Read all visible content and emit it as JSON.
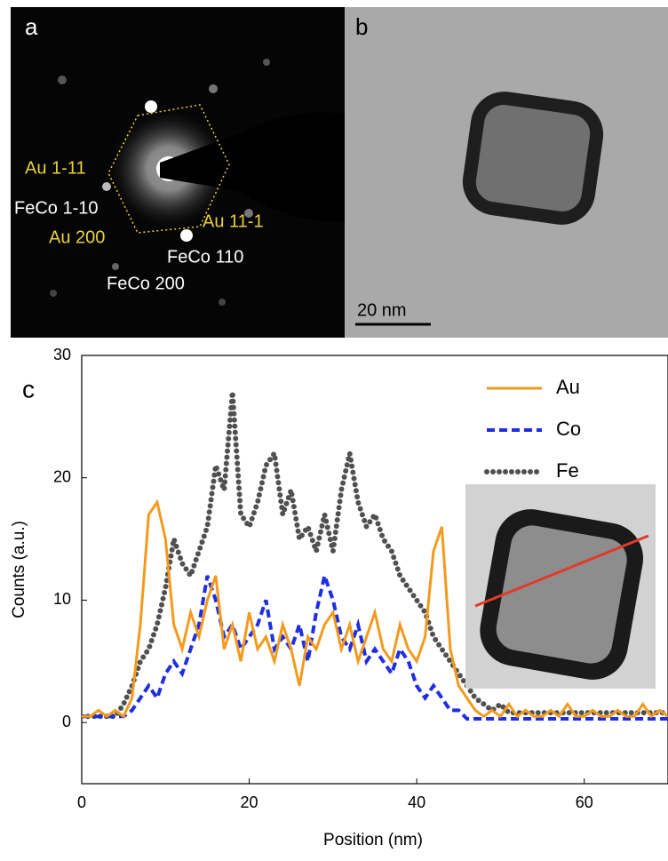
{
  "panels": {
    "a": {
      "label": "a",
      "annotations": [
        {
          "text": "Au 1-11",
          "color": "#e8d23a"
        },
        {
          "text": "FeCo 1-10",
          "color": "#ffffff"
        },
        {
          "text": "Au 200",
          "color": "#e8d23a"
        },
        {
          "text": "Au 11-1",
          "color": "#e8d23a"
        },
        {
          "text": "FeCo 110",
          "color": "#ffffff"
        },
        {
          "text": "FeCo 200",
          "color": "#ffffff"
        }
      ]
    },
    "b": {
      "label": "b",
      "scale_bar": "20 nm"
    }
  },
  "chart_data": {
    "type": "line",
    "panel_label": "c",
    "x_label": "Position (nm)",
    "y_label": "Counts (a.u.)",
    "xlim": [
      0,
      70
    ],
    "xticks": [
      0,
      20,
      40,
      60
    ],
    "ylim": [
      -5,
      30
    ],
    "yticks": [
      0,
      10,
      20,
      30
    ],
    "legend": "upper right",
    "x": [
      0,
      1,
      2,
      3,
      4,
      5,
      6,
      7,
      8,
      9,
      10,
      11,
      12,
      13,
      14,
      15,
      16,
      17,
      18,
      19,
      20,
      21,
      22,
      23,
      24,
      25,
      26,
      27,
      28,
      29,
      30,
      31,
      32,
      33,
      34,
      35,
      36,
      37,
      38,
      39,
      40,
      41,
      42,
      43,
      44,
      45,
      46,
      47,
      48,
      49,
      50,
      51,
      52,
      53,
      54,
      55,
      56,
      57,
      58,
      59,
      60,
      61,
      62,
      63,
      64,
      65,
      66,
      67,
      68,
      69,
      70
    ],
    "series": [
      {
        "name": "Au",
        "color": "#f39a1e",
        "style": "solid",
        "values": [
          0.5,
          0.5,
          1,
          0.5,
          1,
          0.5,
          2,
          8,
          17,
          18,
          15,
          8,
          6,
          9,
          7,
          10,
          12,
          6,
          8,
          5,
          9,
          6,
          7,
          5,
          8,
          6,
          3,
          7,
          6,
          8,
          9,
          6,
          8,
          5,
          7,
          9,
          6,
          5,
          8,
          6,
          5,
          7,
          14,
          16,
          6,
          3,
          2,
          1,
          0.5,
          1,
          0.5,
          1.5,
          0.5,
          1,
          0.5,
          0.5,
          1,
          0.5,
          1.5,
          0.5,
          0.5,
          1,
          0.5,
          0.5,
          1,
          0.5,
          0.5,
          1.5,
          0.5,
          1,
          0.5
        ]
      },
      {
        "name": "Co",
        "color": "#1f2ee0",
        "style": "dashed",
        "values": [
          0.5,
          0.5,
          0.5,
          0.5,
          0.5,
          0.5,
          1,
          2,
          3,
          2,
          4,
          5,
          4,
          6,
          8,
          12,
          10,
          7,
          8,
          6,
          7,
          8,
          10,
          6,
          7,
          6,
          8,
          5,
          9,
          12,
          10,
          7,
          6,
          8,
          5,
          6,
          5,
          4,
          6,
          5,
          3,
          2,
          3,
          2,
          1,
          1,
          0.3,
          0.3,
          0.3,
          0.3,
          0.3,
          0.3,
          0.3,
          0.3,
          0.3,
          0.3,
          0.3,
          0.3,
          0.3,
          0.3,
          0.3,
          0.3,
          0.3,
          0.3,
          0.3,
          0.3,
          0.3,
          0.3,
          0.3,
          0.3,
          0.3
        ]
      },
      {
        "name": "Fe",
        "color": "#505050",
        "style": "dotted",
        "values": [
          0.5,
          0.5,
          0.5,
          0.5,
          0.5,
          1.5,
          3,
          5,
          6,
          8,
          11,
          15,
          13,
          12,
          14,
          16,
          21,
          19,
          27,
          17,
          16,
          18,
          21,
          22,
          17,
          19,
          15,
          16,
          14,
          17,
          14,
          19,
          22,
          18,
          16,
          17,
          15,
          14,
          12,
          11,
          10,
          9,
          7,
          6,
          5,
          4,
          3,
          2,
          1.5,
          1,
          1.5,
          0.8,
          0.8,
          0.8,
          0.8,
          0.8,
          0.8,
          0.8,
          0.8,
          0.8,
          0.8,
          0.8,
          0.8,
          0.8,
          0.8,
          0.8,
          0.8,
          0.8,
          0.8,
          0.8,
          0.8
        ]
      }
    ]
  }
}
